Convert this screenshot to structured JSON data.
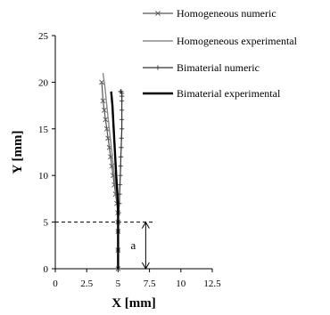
{
  "chart_data": {
    "type": "line",
    "title": "",
    "xlabel": "X [mm]",
    "ylabel": "Y [mm]",
    "xlim": [
      0,
      12.5
    ],
    "ylim": [
      0,
      25
    ],
    "xticks": [
      0,
      2.5,
      5,
      7.5,
      10,
      12.5
    ],
    "xtick_labels": [
      "0",
      "2.5",
      "5",
      "7.5",
      "10",
      "12.5"
    ],
    "yticks": [
      0,
      5,
      10,
      15,
      20,
      25
    ],
    "ytick_labels": [
      "0",
      "5",
      "10",
      "15",
      "20",
      "25"
    ],
    "grid": false,
    "legend_position": "top-right",
    "series": [
      {
        "name": "Homogeneous numeric",
        "marker": "x",
        "x": [
          5.0,
          5.0,
          5.0,
          5.0,
          4.98,
          4.9,
          4.8,
          4.7,
          4.6,
          4.5,
          4.4,
          4.3,
          4.2,
          4.1,
          4.0,
          3.9,
          3.8,
          3.7
        ],
        "y": [
          0,
          2,
          4,
          5,
          6,
          7,
          8,
          9,
          10,
          11,
          12,
          13,
          14,
          15,
          16,
          17,
          18,
          20
        ]
      },
      {
        "name": "Homogeneous experimental",
        "marker": "none",
        "x": [
          5.0,
          5.0,
          4.9,
          4.7,
          4.5,
          4.3,
          4.1,
          3.95,
          3.8
        ],
        "y": [
          0,
          5,
          7.5,
          10,
          12.5,
          15,
          17.5,
          19.5,
          21
        ]
      },
      {
        "name": "Bimaterial numeric",
        "marker": "+",
        "x": [
          5.0,
          5.0,
          5.0,
          5.02,
          5.05,
          5.1,
          5.12,
          5.15,
          5.18,
          5.2,
          5.22,
          5.25,
          5.27,
          5.3,
          5.3,
          5.3,
          5.3,
          5.3,
          5.3,
          5.25,
          5.2
        ],
        "y": [
          0,
          2,
          4,
          5,
          6,
          7,
          8,
          9,
          10,
          11,
          12,
          13,
          14,
          15,
          16,
          17,
          18,
          18.5,
          18.8,
          19,
          19
        ]
      },
      {
        "name": "Bimaterial experimental",
        "marker": "none",
        "x": [
          5.0,
          5.0,
          5.0,
          4.95,
          4.85,
          4.75,
          4.65,
          4.55,
          4.45
        ],
        "y": [
          0,
          5,
          6,
          8,
          10,
          12.5,
          15,
          17.5,
          19
        ]
      }
    ],
    "annotations": [
      {
        "text": "a",
        "type": "dimension-arrow",
        "x": 7.2,
        "y_from": 0,
        "y_to": 5,
        "reference_line_y": 5
      }
    ]
  }
}
